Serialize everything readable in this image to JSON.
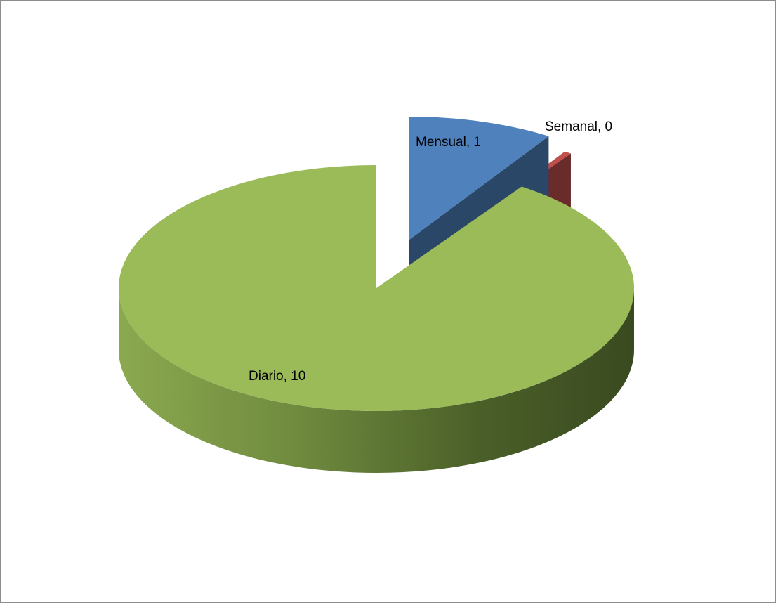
{
  "chart_data": {
    "type": "pie",
    "style": "3d-exploded",
    "categories": [
      "Mensual",
      "Semanal",
      "Diario"
    ],
    "values": [
      1,
      0,
      10
    ],
    "colors": {
      "Mensual": "#4f81bd",
      "Semanal": "#c0504d",
      "Diario": "#9bbb59"
    },
    "data_labels": [
      {
        "category": "Mensual",
        "text": "Mensual, 1"
      },
      {
        "category": "Semanal",
        "text": "Semanal, 0"
      },
      {
        "category": "Diario",
        "text": "Diario, 10"
      }
    ],
    "legend": "none",
    "title": ""
  }
}
